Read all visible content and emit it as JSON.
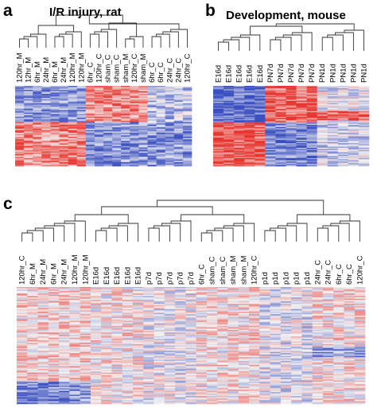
{
  "figure": {
    "panel_a": {
      "letter": "a",
      "title": "I/R injury, rat",
      "columns": [
        "120hr_M",
        "12hr_M",
        "6hr_M",
        "24hr_M",
        "6hr_M",
        "24hr_M",
        "120hr_M",
        "120hr_M",
        "6hr_C",
        "120hr_C",
        "sham_C",
        "sham_C",
        "sham_M",
        "120hr_C",
        "sham_M",
        "6hr_C",
        "6hr_C",
        "24hr_C",
        "24hr_C",
        "120hr_C"
      ]
    },
    "panel_b": {
      "letter": "b",
      "title": "Development, mouse",
      "columns": [
        "E16d",
        "E16d",
        "E16d",
        "E16d",
        "E16d",
        "PN7d",
        "PN7d",
        "PN7d",
        "PN7d",
        "PN7d",
        "PN1d",
        "PN1d",
        "PN1d",
        "PN1d",
        "PN1d"
      ]
    },
    "panel_c": {
      "letter": "c",
      "title": "",
      "columns": [
        "120hr_C",
        "6hr_M",
        "24hr_M",
        "6hr_M",
        "24hr_M",
        "120hr_M",
        "120hr_M",
        "E16d",
        "E16d",
        "E16d",
        "E16d",
        "E16d",
        "p7d",
        "p7d",
        "p7d",
        "p7d",
        "p7d",
        "6hr_C",
        "sham_C",
        "sham_C",
        "sham_M",
        "sham_M",
        "120hr_C",
        "p1d",
        "p1d",
        "p1d",
        "p1d",
        "p1d",
        "24hr_C",
        "24hr_C",
        "6hr_C",
        "6hr_C",
        "120hr_C"
      ]
    }
  },
  "colors": {
    "high": "#e8342e",
    "low": "#3a4fc0",
    "mid": "#f2f2f2"
  }
}
